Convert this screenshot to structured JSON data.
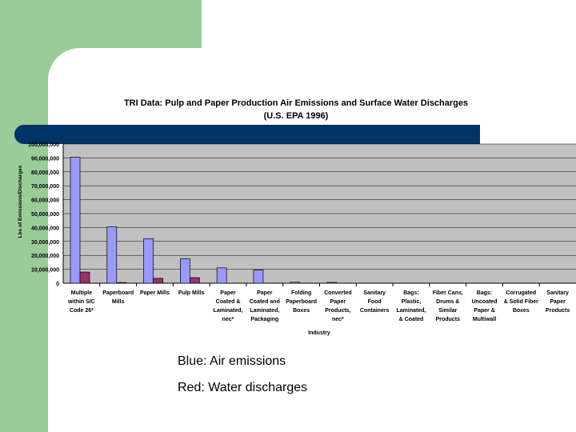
{
  "slide": {
    "caption_air": "Blue: Air emissions",
    "caption_water": "Red: Water discharges"
  },
  "colors": {
    "background_green": "#99cc99",
    "title_bar": "#003366",
    "plot_area": "#c0c0c0",
    "air_series": "#9999ff",
    "water_series": "#993366"
  },
  "chart_data": {
    "type": "bar",
    "title": "TRI Data: Pulp and Paper Production Air Emissions and Surface Water Discharges",
    "subtitle": "(U.S. EPA 1996)",
    "xlabel": "Industry",
    "ylabel": "Lbs of Emissions/Discharges",
    "ylim": [
      0,
      100000000
    ],
    "yticks": [
      "0",
      "10,000,000",
      "20,000,000",
      "30,000,000",
      "40,000,000",
      "50,000,000",
      "60,000,000",
      "70,000,000",
      "80,000,000",
      "90,000,000",
      "100,000,000"
    ],
    "grid": true,
    "categories": [
      [
        "Multiple",
        "within SIC",
        "Code 26*"
      ],
      [
        "Paperboard",
        "Mills"
      ],
      [
        "Paper Mills"
      ],
      [
        "Pulp Mills"
      ],
      [
        "Paper",
        "Coated &",
        "Laminated,",
        "nec*"
      ],
      [
        "Paper",
        "Coated and",
        "Laminated,",
        "Packaging"
      ],
      [
        "Folding",
        "Paperboard",
        "Boxes"
      ],
      [
        "Converted",
        "Paper",
        "Products,",
        "nec*"
      ],
      [
        "Sanitary",
        "Food",
        "Containers"
      ],
      [
        "Bags:",
        "Plastic,",
        "Laminated,",
        "& Coated"
      ],
      [
        "Fiber Cans,",
        "Drums &",
        "Similar",
        "Products"
      ],
      [
        "Bags:",
        "Uncoated",
        "Paper &",
        "Multiwall"
      ],
      [
        "Corrugated",
        "& Solid Fiber",
        "Boxes"
      ],
      [
        "Sanitary",
        "Paper",
        "Products"
      ]
    ],
    "series": [
      {
        "values": [
          90500000,
          40500000,
          32000000,
          17500000,
          11000000,
          9500000,
          700000,
          600000,
          0,
          0,
          0,
          0,
          0,
          0
        ]
      },
      {
        "values": [
          8000000,
          500000,
          3500000,
          4000000,
          0,
          0,
          0,
          0,
          0,
          0,
          0,
          0,
          0,
          0
        ]
      }
    ]
  }
}
